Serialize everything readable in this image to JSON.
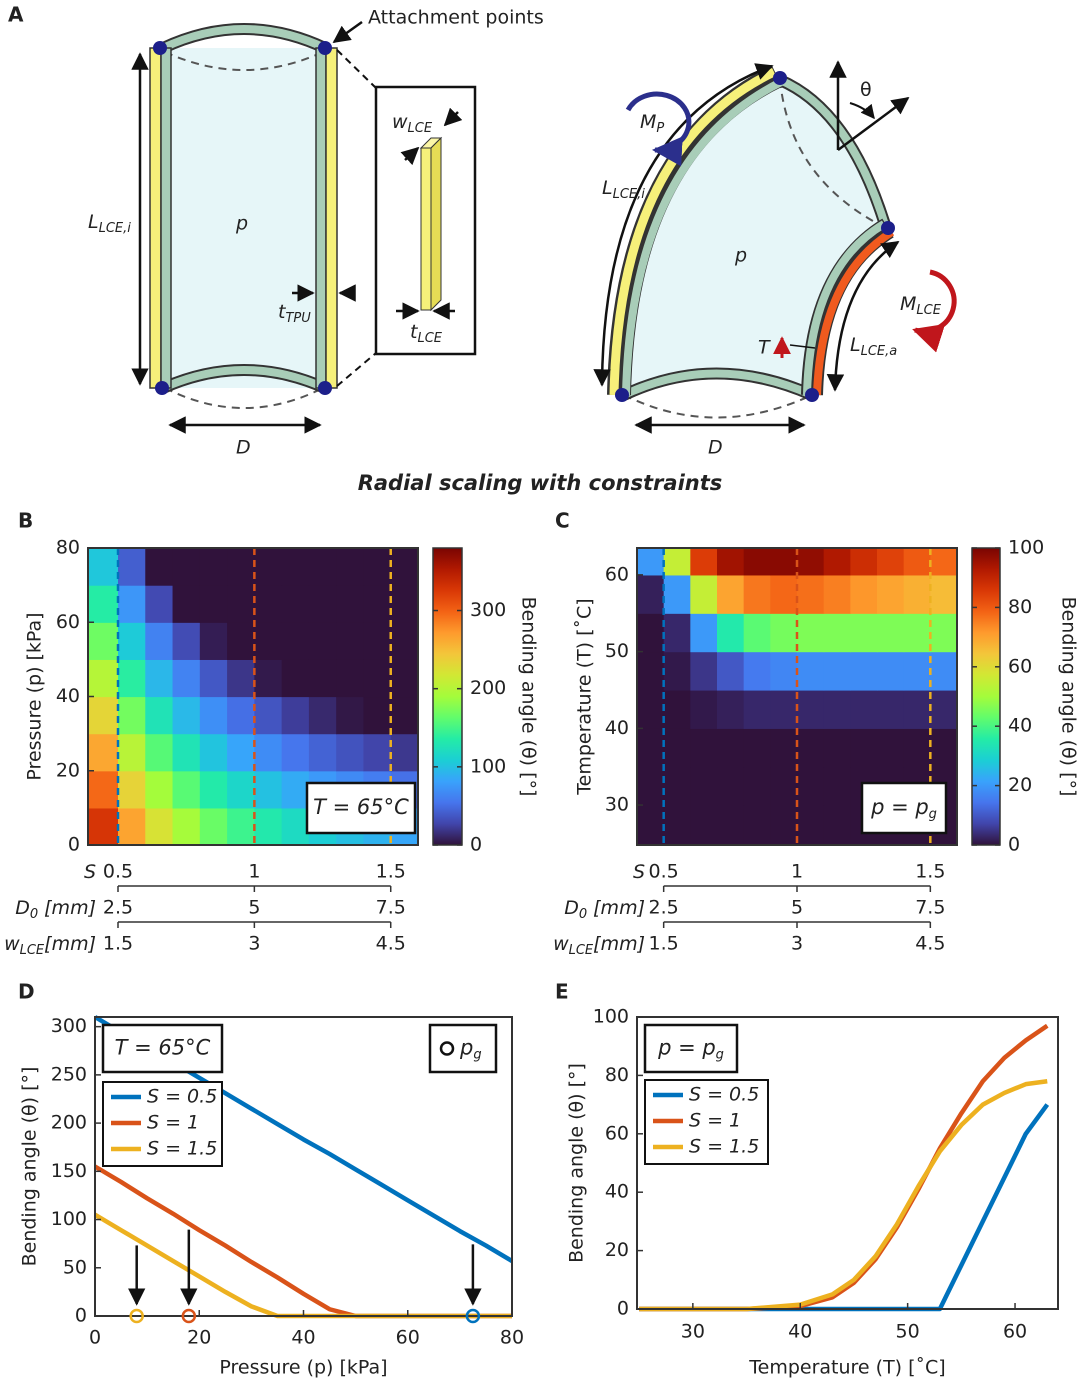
{
  "figure_title": "Radial scaling with constraints",
  "panel_a": {
    "letter": "A",
    "attachment_points": "Attachment points",
    "w_lce": {
      "main": "w",
      "sub": "LCE"
    },
    "l_lce_i_left": {
      "main": "L",
      "sub": "LCE,i"
    },
    "p_left": "p",
    "t_tpu": {
      "main": "t",
      "sub": "TPU"
    },
    "t_lce": {
      "main": "t",
      "sub": "LCE"
    },
    "d_left": "D",
    "m_p": {
      "main": "M",
      "sub": "P"
    },
    "theta": "θ",
    "l_lce_i_right": {
      "main": "L",
      "sub": "LCE,i"
    },
    "p_right": "p",
    "m_lce": {
      "main": "M",
      "sub": "LCE"
    },
    "t_label": "T",
    "l_lce_a": {
      "main": "L",
      "sub": "LCE,a"
    },
    "d_right": "D"
  },
  "chart_data": [
    {
      "type": "heatmap",
      "panel": "B",
      "ylabel": "Pressure (p) [kPa]",
      "xlim": [
        0.39,
        1.6
      ],
      "ylim": [
        0,
        80
      ],
      "yticks": [
        0,
        20,
        40,
        60,
        80
      ],
      "xbins": [
        0.39,
        0.5,
        0.6,
        0.7,
        0.8,
        0.9,
        1.0,
        1.1,
        1.2,
        1.3,
        1.4,
        1.5,
        1.6
      ],
      "ybins": [
        0,
        10,
        20,
        30,
        40,
        50,
        60,
        70,
        80
      ],
      "z": [
        [
          328,
          266,
          222,
          191,
          166,
          147,
          132,
          119,
          108,
          99,
          91,
          84
        ],
        [
          296,
          234,
          190,
          159,
          134,
          115,
          100,
          87,
          76,
          67,
          59,
          52
        ],
        [
          264,
          202,
          158,
          127,
          102,
          83,
          68,
          55,
          44,
          35,
          27,
          20
        ],
        [
          232,
          170,
          126,
          95,
          70,
          51,
          36,
          23,
          12,
          3,
          0,
          0
        ],
        [
          200,
          138,
          94,
          63,
          38,
          19,
          4,
          0,
          0,
          0,
          0,
          0
        ],
        [
          168,
          106,
          62,
          31,
          6,
          0,
          0,
          0,
          0,
          0,
          0,
          0
        ],
        [
          136,
          74,
          30,
          0,
          0,
          0,
          0,
          0,
          0,
          0,
          0,
          0
        ],
        [
          104,
          42,
          0,
          0,
          0,
          0,
          0,
          0,
          0,
          0,
          0,
          0
        ]
      ],
      "clim": [
        0,
        380
      ],
      "cticks": [
        0,
        100,
        200,
        300
      ],
      "clabel": "Bending angle (θ) [°]",
      "colormap": [
        "#30123b",
        "#4145ab",
        "#4675ed",
        "#39a2fc",
        "#1bcfd4",
        "#24eca6",
        "#61fc6c",
        "#a4fc3b",
        "#d1e834",
        "#f3c63a",
        "#fe9b2d",
        "#f36315",
        "#d93806",
        "#b11901",
        "#7a0402"
      ],
      "annotation": {
        "main": "T = 65°C"
      },
      "reference_lines": {
        "x": [
          0.5,
          1,
          1.5
        ],
        "colors": [
          "#0072bd",
          "#d95319",
          "#edb120"
        ]
      },
      "x_scales": [
        {
          "label": {
            "main": "S"
          },
          "lim": [
            0.39,
            1.6
          ],
          "ticks": [
            0.5,
            1,
            1.5
          ]
        },
        {
          "label": {
            "main": "D",
            "sub": "0",
            "after": " [mm]"
          },
          "lim": [
            1.95,
            8
          ],
          "ticks": [
            2.5,
            5,
            7.5
          ]
        },
        {
          "label": {
            "main": "w",
            "sub": "LCE",
            "after": "[mm]"
          },
          "lim": [
            1.17,
            4.8
          ],
          "ticks": [
            1.5,
            3,
            4.5
          ]
        }
      ]
    },
    {
      "type": "heatmap",
      "panel": "C",
      "ylabel": "Temperature (T) [˚C]",
      "xlim": [
        0.4,
        1.6
      ],
      "ylim": [
        24.8,
        63.5
      ],
      "yticks": [
        30,
        40,
        50,
        60
      ],
      "xbins": [
        0.4,
        0.5,
        0.6,
        0.7,
        0.8,
        0.9,
        1.0,
        1.1,
        1.2,
        1.3,
        1.4,
        1.5,
        1.6
      ],
      "ybins": [
        24.8,
        30,
        35,
        40,
        45,
        50,
        55,
        60,
        63.5
      ],
      "z": [
        [
          0,
          0,
          0,
          0,
          0,
          0,
          0,
          0,
          0,
          0,
          0,
          0
        ],
        [
          0,
          0,
          0,
          0,
          0,
          0,
          0,
          0,
          0,
          0,
          0,
          0
        ],
        [
          0,
          0,
          0,
          0,
          0,
          0,
          0,
          0,
          0,
          0,
          0,
          0
        ],
        [
          0,
          0,
          1,
          2,
          3,
          3,
          3,
          3,
          3,
          3,
          3,
          3
        ],
        [
          0,
          1,
          5,
          10,
          15,
          17,
          18,
          18,
          18,
          18,
          18,
          18
        ],
        [
          0,
          3,
          20,
          35,
          42,
          45,
          46,
          46,
          46,
          46,
          46,
          46
        ],
        [
          2,
          20,
          55,
          70,
          76,
          78,
          77,
          75,
          72,
          70,
          68,
          66
        ],
        [
          20,
          55,
          85,
          95,
          98,
          98,
          97,
          93,
          88,
          84,
          80,
          78
        ]
      ],
      "clim": [
        0,
        100
      ],
      "cticks": [
        0,
        20,
        40,
        60,
        80,
        100
      ],
      "clabel": "Bending angle (θ) [°]",
      "colormap": [
        "#30123b",
        "#4145ab",
        "#4675ed",
        "#39a2fc",
        "#1bcfd4",
        "#24eca6",
        "#61fc6c",
        "#a4fc3b",
        "#d1e834",
        "#f3c63a",
        "#fe9b2d",
        "#f36315",
        "#d93806",
        "#b11901",
        "#7a0402"
      ],
      "annotation": {
        "main": "p = p",
        "sub": "g"
      },
      "reference_lines": {
        "x": [
          0.5,
          1,
          1.5
        ],
        "colors": [
          "#0072bd",
          "#d95319",
          "#edb120"
        ]
      },
      "x_scales": [
        {
          "label": {
            "main": "S"
          },
          "lim": [
            0.4,
            1.6
          ],
          "ticks": [
            0.5,
            1,
            1.5
          ]
        },
        {
          "label": {
            "main": "D",
            "sub": "0",
            "after": " [mm]"
          },
          "lim": [
            2,
            8
          ],
          "ticks": [
            2.5,
            5,
            7.5
          ]
        },
        {
          "label": {
            "main": "w",
            "sub": "LCE",
            "after": "[mm]"
          },
          "lim": [
            1.2,
            4.8
          ],
          "ticks": [
            1.5,
            3,
            4.5
          ]
        }
      ]
    },
    {
      "type": "line",
      "panel": "D",
      "xlabel": "Pressure (p) [kPa]",
      "ylabel": "Bending angle (θ) [°]",
      "x": [
        0,
        5,
        10,
        15,
        20,
        25,
        30,
        35,
        40,
        45,
        50,
        55,
        60,
        65,
        70,
        75,
        80
      ],
      "series": [
        {
          "name": "S = 0.5",
          "color": "#0072bd",
          "values": [
            310,
            294,
            278,
            263,
            247,
            231,
            215,
            199,
            183,
            168,
            152,
            136,
            120,
            104,
            88,
            73,
            57
          ]
        },
        {
          "name": "S = 1",
          "color": "#d95319",
          "values": [
            155,
            139,
            122,
            106,
            89,
            73,
            56,
            40,
            23,
            7,
            0,
            0,
            0,
            0,
            0,
            0,
            0
          ]
        },
        {
          "name": "S = 1.5",
          "color": "#edb120",
          "values": [
            105,
            89,
            73,
            57,
            41,
            25,
            10,
            0,
            0,
            0,
            0,
            0,
            0,
            0,
            0,
            0,
            0
          ]
        }
      ],
      "xlim": [
        0,
        80
      ],
      "ylim": [
        0,
        310
      ],
      "xticks": [
        0,
        20,
        40,
        60,
        80
      ],
      "yticks": [
        0,
        50,
        100,
        150,
        200,
        250,
        300
      ],
      "annotation": {
        "main": "T = 65°C"
      },
      "pg_legend": {
        "main": "p",
        "sub": "g"
      },
      "pg_points": {
        "x": [
          8,
          18,
          72.5
        ],
        "y": [
          0,
          0,
          0
        ],
        "colors": [
          "#edb120",
          "#d95319",
          "#0072bd"
        ]
      }
    },
    {
      "type": "line",
      "panel": "E",
      "xlabel": "Temperature (T) [˚C]",
      "ylabel": "Bending angle (θ) [°]",
      "x": [
        25,
        30,
        35,
        40,
        43,
        45,
        47,
        49,
        51,
        53,
        55,
        57,
        59,
        61,
        63
      ],
      "series": [
        {
          "name": "S = 0.5",
          "color": "#0072bd",
          "values": [
            0,
            0,
            0,
            0,
            0,
            0,
            0,
            0,
            0,
            0,
            15,
            30,
            45,
            60,
            70
          ]
        },
        {
          "name": "S = 1",
          "color": "#d95319",
          "values": [
            0,
            0,
            0,
            1,
            4,
            9,
            17,
            28,
            41,
            55,
            67,
            78,
            86,
            92,
            97
          ]
        },
        {
          "name": "S = 1.5",
          "color": "#edb120",
          "values": [
            0,
            0,
            0,
            1.5,
            5,
            10,
            18,
            29,
            42,
            54,
            63,
            70,
            74,
            77,
            78
          ]
        }
      ],
      "xlim": [
        24.8,
        64
      ],
      "ylim": [
        0,
        100
      ],
      "xticks": [
        30,
        40,
        50,
        60
      ],
      "yticks": [
        0,
        20,
        40,
        60,
        80,
        100
      ],
      "annotation": {
        "main": "p = p",
        "sub": "g"
      }
    }
  ]
}
